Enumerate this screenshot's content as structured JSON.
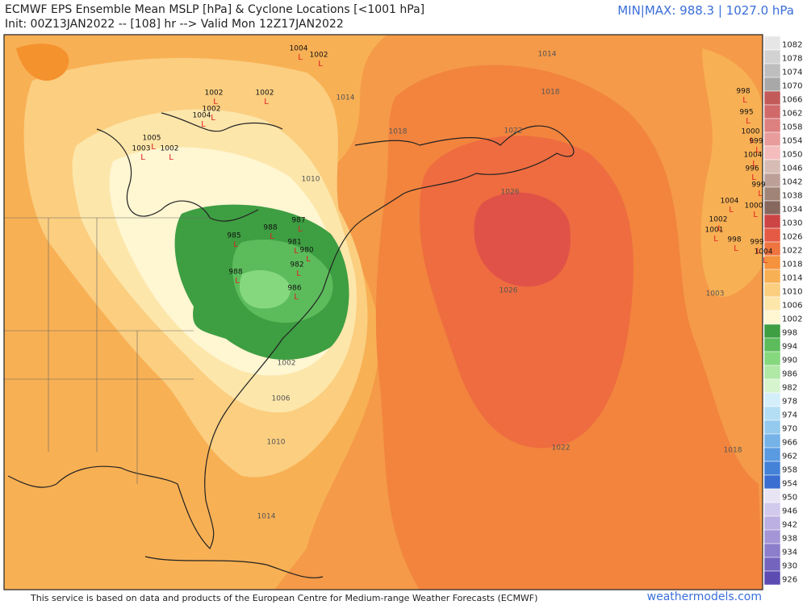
{
  "header": {
    "title": "ECMWF EPS Ensemble Mean MSLP [hPa] & Cyclone Locations [<1001 hPa]",
    "subtitle": "Init: 00Z13JAN2022 -- [108] hr --> Valid Mon 12Z17JAN2022",
    "minmax": "MIN|MAX: 988.3 | 1027.0 hPa"
  },
  "colorbar": {
    "labels": [
      1082,
      1078,
      1074,
      1070,
      1066,
      1062,
      1058,
      1054,
      1050,
      1046,
      1042,
      1038,
      1034,
      1030,
      1026,
      1022,
      1018,
      1014,
      1010,
      1006,
      1002,
      998,
      994,
      990,
      986,
      982,
      978,
      974,
      970,
      966,
      962,
      958,
      954,
      950,
      946,
      942,
      938,
      934,
      930,
      926
    ],
    "colors": [
      "#e6e6e6",
      "#d2d2d2",
      "#bebebe",
      "#a8a8a8",
      "#c25a5a",
      "#d06a6a",
      "#dc8080",
      "#e89c9c",
      "#f4bcbc",
      "#d6bcb4",
      "#bca098",
      "#a08478",
      "#86685e",
      "#cc4444",
      "#e45a44",
      "#ee7440",
      "#f4923e",
      "#f8b054",
      "#fbce80",
      "#fde6aa",
      "#fff6d2",
      "#3e9e42",
      "#5cbc5c",
      "#86d87e",
      "#b0e8a6",
      "#d6f4ce",
      "#d4eefa",
      "#b4def4",
      "#94caee",
      "#74b2e8",
      "#5a9ae0",
      "#4482d8",
      "#3a6ed0",
      "#e8e4f4",
      "#d2caec",
      "#bcb0e2",
      "#a496d6",
      "#8c7eca",
      "#7464be",
      "#5c4cb2"
    ]
  },
  "contour_labels": [
    "1002",
    "1006",
    "1010",
    "1014",
    "1018",
    "1022",
    "1026",
    "1026",
    "1018",
    "1022",
    "1018",
    "1014",
    "1014",
    "1010",
    "1003"
  ],
  "cyclones": [
    "1004",
    "1002",
    "1002",
    "1002",
    "1002",
    "1004",
    "1002",
    "1003",
    "1005",
    "998",
    "995",
    "1000",
    "999",
    "1004",
    "996",
    "999",
    "1004",
    "1002",
    "1001",
    "998",
    "999",
    "1004",
    "1000",
    "988",
    "981",
    "982",
    "986",
    "987",
    "985",
    "988",
    "980"
  ],
  "marker": "L",
  "footer": {
    "credit": "This service is based on data and products of the European Centre for Medium-range Weather Forecasts (ECMWF)",
    "site": "weathermodels.com"
  }
}
